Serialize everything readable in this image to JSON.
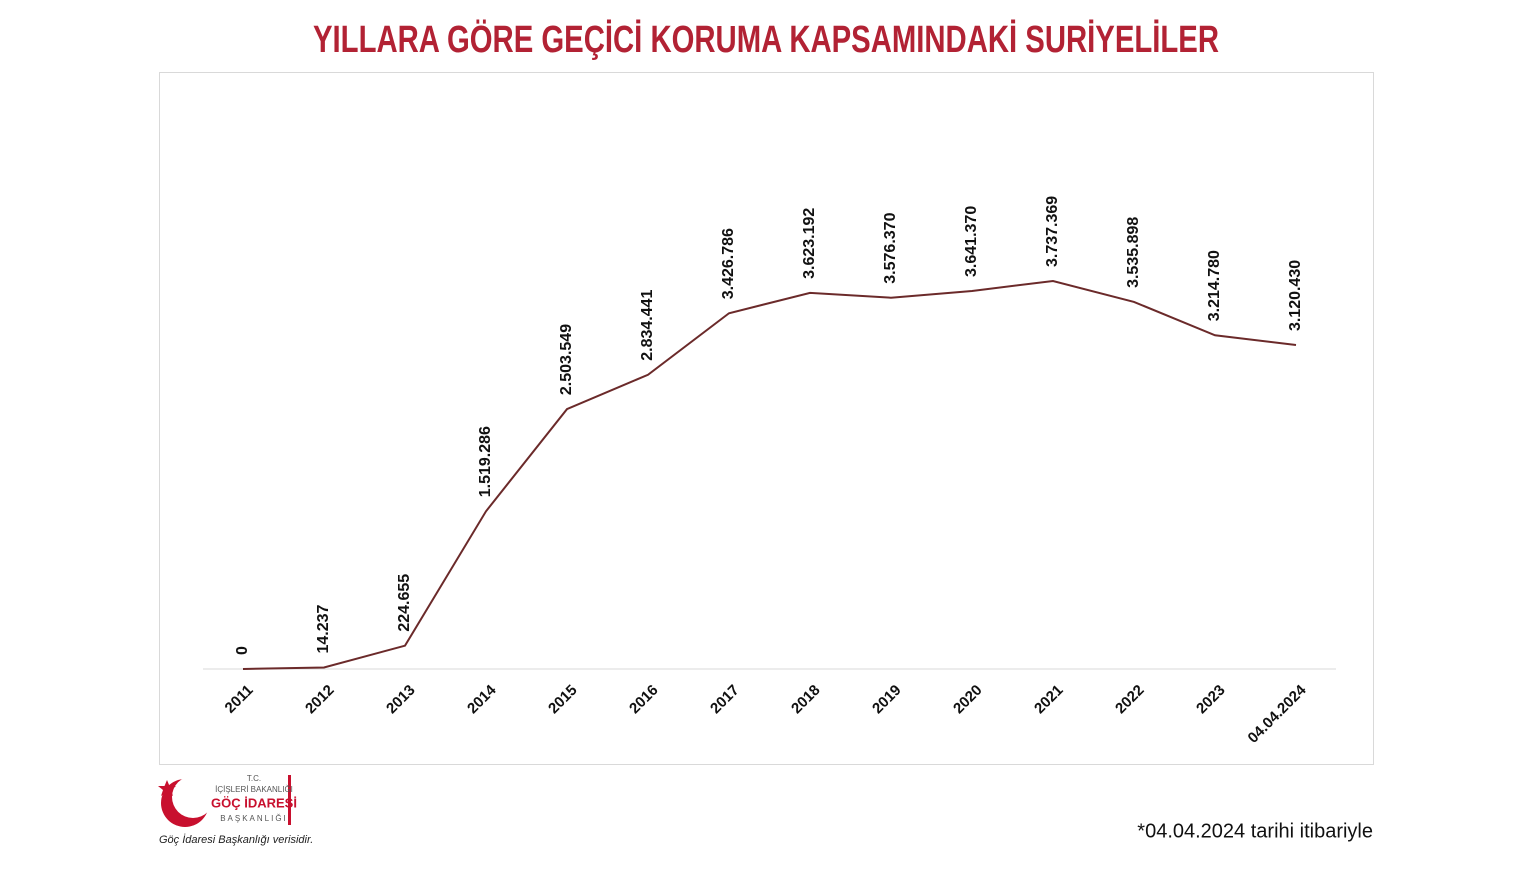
{
  "chart_data": {
    "type": "line",
    "title": "YILLARA GÖRE GEÇİCİ KORUMA KAPSAMINDAKİ SURİYELİLER",
    "categories": [
      "2011",
      "2012",
      "2013",
      "2014",
      "2015",
      "2016",
      "2017",
      "2018",
      "2019",
      "2020",
      "2021",
      "2022",
      "2023",
      "04.04.2024"
    ],
    "values": [
      0,
      14237,
      224655,
      1519286,
      2503549,
      2834441,
      3426786,
      3623192,
      3576370,
      3641370,
      3737369,
      3535898,
      3214780,
      3120430
    ],
    "value_labels": [
      "0",
      "14.237",
      "224.655",
      "1.519.286",
      "2.503.549",
      "2.834.441",
      "3.426.786",
      "3.623.192",
      "3.576.370",
      "3.641.370",
      "3.737.369",
      "3.535.898",
      "3.214.780",
      "3.120.430"
    ],
    "color": "#6b2a2a",
    "note": "*04.04.2024 tarihi itibariyle"
  },
  "logo": {
    "tc": "T.C.",
    "ministry": "İÇİŞLERİ BAKANLIĞI",
    "name": "GÖÇ İDARESİ",
    "unit": "BAŞKANLIĞI",
    "source": "Göç İdaresi Başkanlığı verisidir."
  }
}
